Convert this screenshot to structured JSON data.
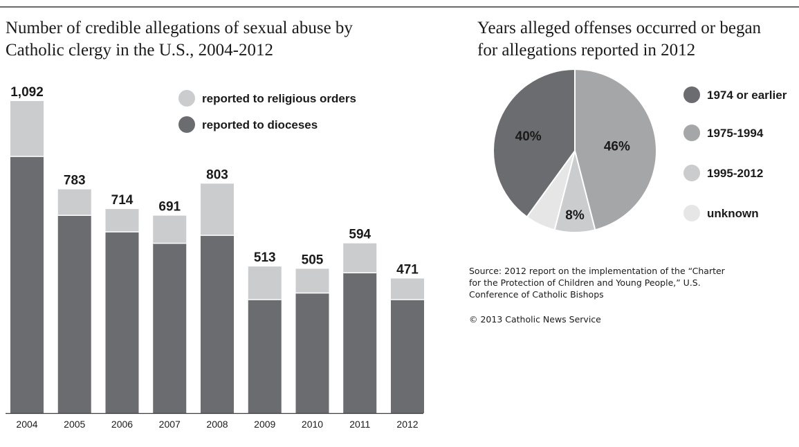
{
  "chart_data": [
    {
      "type": "bar",
      "stacked": true,
      "title": "Number of credible allegations of sexual abuse by Catholic clergy in the U.S., 2004-2012",
      "title_lines": [
        "Number of credible allegations of sexual abuse by",
        "Catholic clergy in the U.S., 2004-2012"
      ],
      "categories": [
        "2004",
        "2005",
        "2006",
        "2007",
        "2008",
        "2009",
        "2010",
        "2011",
        "2012"
      ],
      "totals": [
        1092,
        783,
        714,
        691,
        803,
        513,
        505,
        594,
        471
      ],
      "total_labels": [
        "1,092",
        "783",
        "714",
        "691",
        "803",
        "513",
        "505",
        "594",
        "471"
      ],
      "series": [
        {
          "name": "reported to dioceses",
          "color": "#6b6c6f",
          "values": [
            898,
            692,
            634,
            594,
            622,
            397,
            420,
            491,
            397
          ]
        },
        {
          "name": "reported to religious orders",
          "color": "#cbcccd",
          "values": [
            194,
            91,
            80,
            97,
            181,
            116,
            85,
            103,
            74
          ]
        }
      ],
      "legend": [
        {
          "label": "reported to religious orders",
          "color": "#cbcccd"
        },
        {
          "label": "reported to dioceses",
          "color": "#6b6c6f"
        }
      ],
      "ylim": [
        0,
        1092
      ],
      "grid": false,
      "legend_position": "top-right"
    },
    {
      "type": "pie",
      "title": "Years alleged offenses occurred or began for allegations reported in 2012",
      "title_lines": [
        "Years alleged offenses occurred or began",
        "for allegations reported in 2012"
      ],
      "slices": [
        {
          "label": "1975-1994",
          "value": 46,
          "text": "46%",
          "color": "#a5a6a8"
        },
        {
          "label": "1995-2012",
          "value": 8,
          "text": "8%",
          "color": "#cbcccd"
        },
        {
          "label": "unknown",
          "value": 6,
          "text": "",
          "color": "#e6e6e7"
        },
        {
          "label": "1974 or earlier",
          "value": 40,
          "text": "40%",
          "color": "#6b6c6f"
        }
      ],
      "legend": [
        {
          "label": "1974 or earlier",
          "color": "#6b6c6f"
        },
        {
          "label": "1975-1994",
          "color": "#a5a6a8"
        },
        {
          "label": "1995-2012",
          "color": "#cbcccd"
        },
        {
          "label": "unknown",
          "color": "#e6e6e7"
        }
      ]
    }
  ],
  "source_lines": [
    "Source: 2012 report on the implementation of the “Charter",
    "for the Protection of Children and Young People,” U.S.",
    "Conference of Catholic Bishops"
  ],
  "copyright": "© 2013 Catholic News Service",
  "colors": {
    "divider": "#3a3a3a",
    "text": "#1a1a1a"
  }
}
